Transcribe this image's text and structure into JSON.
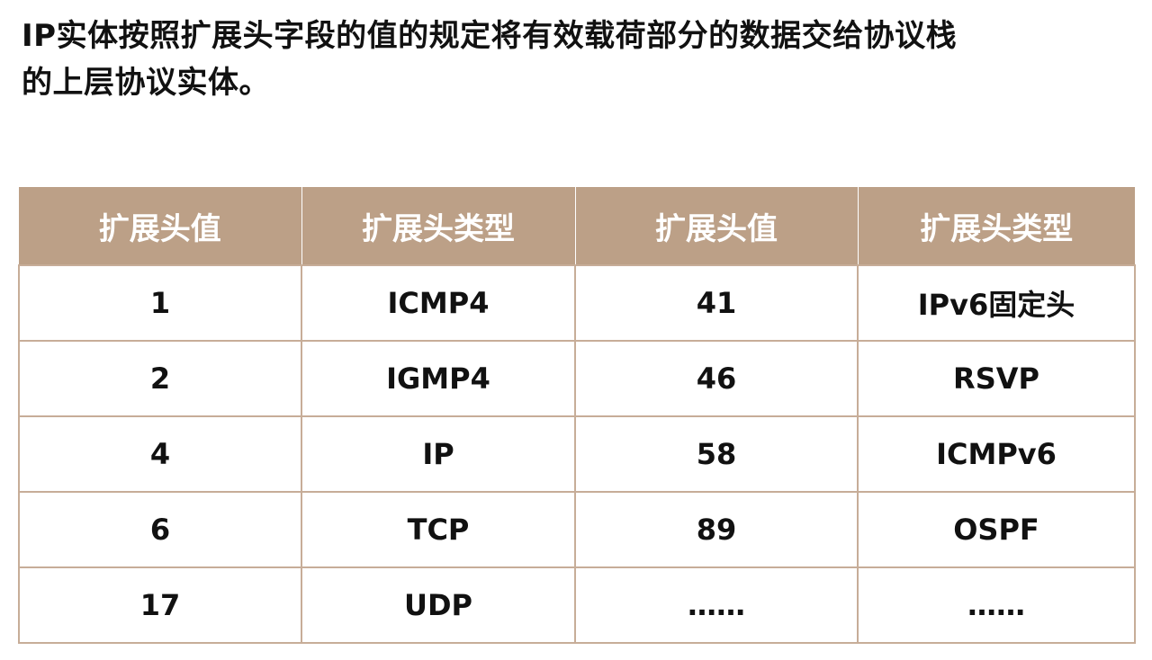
{
  "document": {
    "intro_line1": "IP实体按照扩展头字段的值的规定将有效载荷部分的数据交给协议栈",
    "intro_line2": "的上层协议实体。"
  },
  "table": {
    "headers": [
      "扩展头值",
      "扩展头类型",
      "扩展头值",
      "扩展头类型"
    ],
    "rows": [
      [
        "1",
        "ICMP4",
        "41",
        "IPv6固定头"
      ],
      [
        "2",
        "IGMP4",
        "46",
        "RSVP"
      ],
      [
        "4",
        "IP",
        "58",
        "ICMPv6"
      ],
      [
        "6",
        "TCP",
        "89",
        "OSPF"
      ],
      [
        "17",
        "UDP",
        "……",
        "……"
      ]
    ]
  },
  "colors": {
    "header_background": "#bca087",
    "header_text": "#ffffff",
    "border": "#c7ad98"
  }
}
